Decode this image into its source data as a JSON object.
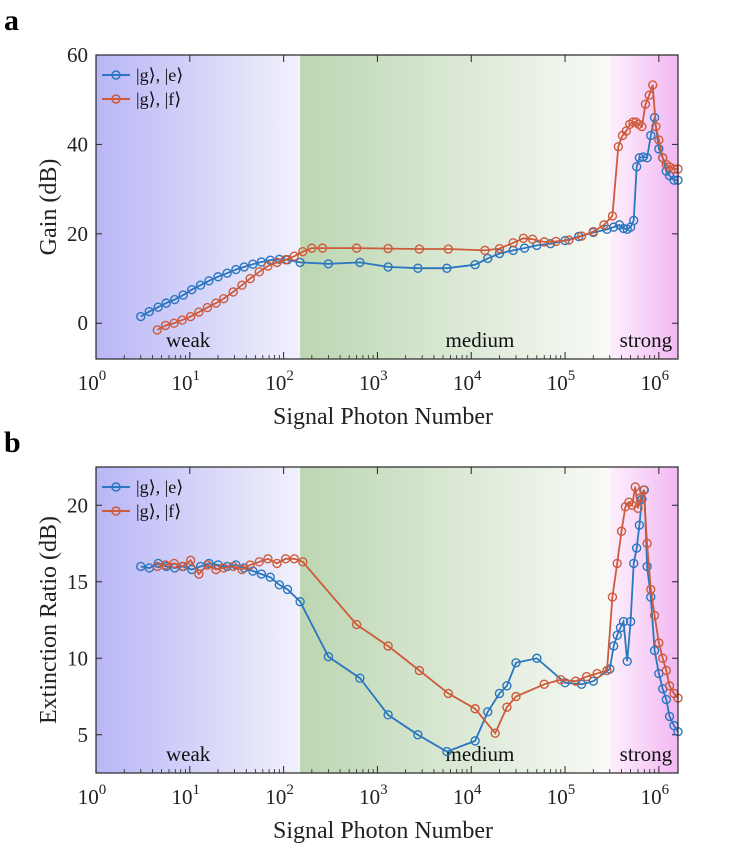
{
  "chart_data": [
    {
      "panel": "a",
      "type": "line",
      "xscale": "log",
      "xlim": [
        1,
        1600000
      ],
      "ylim": [
        -8,
        60
      ],
      "yticks": [
        0,
        20,
        40,
        60
      ],
      "xticks": [
        {
          "base": "10",
          "exp": "0"
        },
        {
          "base": "10",
          "exp": "1"
        },
        {
          "base": "10",
          "exp": "2"
        },
        {
          "base": "10",
          "exp": "3"
        },
        {
          "base": "10",
          "exp": "4"
        },
        {
          "base": "10",
          "exp": "5"
        },
        {
          "base": "10",
          "exp": "6"
        }
      ],
      "xlabel": "Signal Photon Number",
      "ylabel": "Gain (dB)",
      "regions": [
        {
          "label": "weak",
          "from": 1,
          "to": 150
        },
        {
          "label": "medium",
          "from": 150,
          "to": 300000
        },
        {
          "label": "strong",
          "from": 300000,
          "to": 1600000
        }
      ],
      "legend": {
        "position": "top-left"
      },
      "series": [
        {
          "name": "|g⟩, |e⟩",
          "color": "#2a76bf",
          "x": [
            3,
            3.7,
            4.6,
            5.6,
            6.9,
            8.5,
            10.5,
            13,
            16,
            20,
            25,
            31,
            38,
            47,
            58,
            72,
            90,
            110,
            150,
            300,
            650,
            1300,
            2700,
            5500,
            11000,
            15000,
            20000,
            28000,
            37000,
            50000,
            70000,
            100000,
            140000,
            200000,
            280000,
            330000,
            380000,
            420000,
            460000,
            500000,
            540000,
            580000,
            620000,
            680000,
            750000,
            820000,
            900000,
            1000000,
            1100000,
            1200000,
            1300000,
            1450000,
            1600000
          ],
          "y": [
            1.5,
            2.6,
            3.6,
            4.5,
            5.3,
            6.3,
            7.5,
            8.5,
            9.5,
            10.4,
            11.2,
            12,
            12.6,
            13.2,
            13.7,
            14.1,
            14.3,
            14.2,
            13.6,
            13.3,
            13.6,
            12.6,
            12.3,
            12.3,
            13.1,
            14.5,
            15.6,
            16.3,
            16.8,
            17.4,
            17.8,
            18.5,
            19.4,
            20.3,
            21,
            21.5,
            22,
            21.2,
            21,
            21.5,
            23,
            35,
            37,
            37.2,
            37,
            42,
            46,
            39,
            37,
            34,
            33,
            32,
            32
          ]
        },
        {
          "name": "|g⟩, |f⟩",
          "color": "#cd5b3c",
          "x": [
            4.5,
            5.5,
            6.8,
            8.3,
            10.2,
            12.5,
            15.4,
            19,
            23,
            29,
            36,
            44,
            55,
            68,
            85,
            105,
            130,
            160,
            200,
            260,
            600,
            1300,
            2800,
            5700,
            14000,
            20000,
            28000,
            36000,
            45000,
            60000,
            80000,
            110000,
            150000,
            200000,
            260000,
            320000,
            370000,
            410000,
            450000,
            490000,
            530000,
            570000,
            610000,
            660000,
            720000,
            790000,
            860000,
            930000,
            1000000,
            1100000,
            1200000,
            1300000,
            1450000,
            1600000
          ],
          "y": [
            -1.5,
            -0.5,
            0,
            0.7,
            1.5,
            2.5,
            3.5,
            4.5,
            5.5,
            7,
            8.5,
            10,
            11.5,
            12.8,
            13.6,
            14.2,
            15,
            16,
            16.8,
            16.8,
            16.8,
            16.7,
            16.6,
            16.6,
            16.3,
            16.7,
            18,
            19,
            18.8,
            18.2,
            18.3,
            18.6,
            19.5,
            20.5,
            22,
            24,
            39.5,
            42,
            43,
            44.5,
            45,
            45,
            44.5,
            44,
            49,
            51,
            53.3,
            44,
            41,
            37,
            35.5,
            35,
            34.5,
            34.5
          ]
        }
      ]
    },
    {
      "panel": "b",
      "type": "line",
      "xscale": "log",
      "xlim": [
        1,
        1600000
      ],
      "ylim": [
        2.5,
        22.5
      ],
      "yticks": [
        5,
        10,
        15,
        20
      ],
      "xticks": [
        {
          "base": "10",
          "exp": "0"
        },
        {
          "base": "10",
          "exp": "1"
        },
        {
          "base": "10",
          "exp": "2"
        },
        {
          "base": "10",
          "exp": "3"
        },
        {
          "base": "10",
          "exp": "4"
        },
        {
          "base": "10",
          "exp": "5"
        },
        {
          "base": "10",
          "exp": "6"
        }
      ],
      "xlabel": "Signal Photon Number",
      "ylabel": "Extinction Ratio (dB)",
      "regions": [
        {
          "label": "weak",
          "from": 1,
          "to": 150
        },
        {
          "label": "medium",
          "from": 150,
          "to": 300000
        },
        {
          "label": "strong",
          "from": 300000,
          "to": 1600000
        }
      ],
      "legend": {
        "position": "top-left"
      },
      "series": [
        {
          "name": "|g⟩, |e⟩",
          "color": "#2a76bf",
          "x": [
            3,
            3.7,
            4.6,
            5.6,
            6.9,
            8.5,
            10.5,
            13,
            16,
            20,
            25,
            31,
            38,
            47,
            58,
            72,
            90,
            110,
            150,
            300,
            650,
            1300,
            2700,
            5500,
            11000,
            15000,
            20000,
            24000,
            30000,
            50000,
            100000,
            150000,
            200000,
            300000,
            330000,
            360000,
            390000,
            420000,
            460000,
            500000,
            540000,
            580000,
            620000,
            660000,
            700000,
            750000,
            820000,
            900000,
            1000000,
            1100000,
            1200000,
            1300000,
            1450000,
            1600000
          ],
          "y": [
            16,
            15.9,
            16.2,
            16,
            15.9,
            16,
            15.8,
            16,
            16.2,
            16.1,
            16,
            16.1,
            15.9,
            15.7,
            15.5,
            15.3,
            14.8,
            14.5,
            13.7,
            10.1,
            8.7,
            6.3,
            5,
            3.9,
            4.6,
            6.5,
            7.7,
            8.2,
            9.7,
            10,
            8.4,
            8.3,
            8.5,
            9.3,
            10.8,
            11.5,
            12,
            12.4,
            9.8,
            12.4,
            16.2,
            17.2,
            18.7,
            20.4,
            21,
            16,
            14,
            10.5,
            9,
            8,
            7.3,
            6.2,
            5.6,
            5.2
          ]
        },
        {
          "name": "|g⟩, |f⟩",
          "color": "#cd5b3c",
          "x": [
            4.5,
            5.5,
            6.8,
            8.3,
            10.2,
            12.5,
            15.4,
            19,
            23,
            29,
            36,
            44,
            55,
            68,
            85,
            105,
            130,
            160,
            600,
            1300,
            2800,
            5700,
            11000,
            18000,
            24000,
            30000,
            60000,
            90000,
            130000,
            170000,
            220000,
            280000,
            320000,
            360000,
            400000,
            440000,
            480000,
            520000,
            560000,
            600000,
            640000,
            690000,
            750000,
            820000,
            900000,
            1000000,
            1100000,
            1200000,
            1300000,
            1450000,
            1600000
          ],
          "y": [
            16,
            16.1,
            16.2,
            16,
            16.4,
            15.5,
            16.1,
            15.8,
            15.9,
            16,
            15.8,
            16.1,
            16.3,
            16.5,
            16.2,
            16.5,
            16.5,
            16.3,
            12.2,
            10.8,
            9.2,
            7.7,
            6.7,
            5.1,
            6.8,
            7.5,
            8.3,
            8.6,
            8.5,
            8.8,
            9,
            9.2,
            14,
            16.2,
            18.3,
            19.9,
            20.2,
            20,
            21.2,
            19.8,
            20.5,
            21,
            17.5,
            14.5,
            12.8,
            11,
            10,
            9.2,
            8.2,
            7.7,
            7.4
          ]
        }
      ]
    }
  ],
  "panels": [
    {
      "letter": "a"
    },
    {
      "letter": "b"
    }
  ]
}
